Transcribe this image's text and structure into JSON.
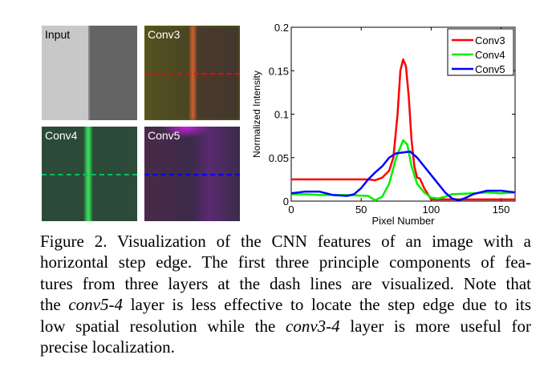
{
  "panels": [
    {
      "id": "input",
      "label": "Input"
    },
    {
      "id": "conv3",
      "label": "Conv3",
      "dash_color": "#ff0000"
    },
    {
      "id": "conv4",
      "label": "Conv4",
      "dash_color": "#00c060"
    },
    {
      "id": "conv5",
      "label": "Conv5",
      "dash_color": "#0000ff"
    }
  ],
  "chart_data": {
    "type": "line",
    "xlabel": "Pixel Number",
    "ylabel": "Normalized Intensity",
    "xlim": [
      0,
      160
    ],
    "ylim": [
      0,
      0.2
    ],
    "xticks": [
      "0",
      "50",
      "100",
      "150"
    ],
    "yticks": [
      "0",
      "0.05",
      "0.1",
      "0.15",
      "0.2"
    ],
    "xtick_values": [
      0,
      50,
      100,
      150
    ],
    "ytick_values": [
      0,
      0.05,
      0.1,
      0.15,
      0.2
    ],
    "legend_position": "top-right",
    "grid": false,
    "series": [
      {
        "name": "Conv3",
        "color": "#ff0000",
        "x": [
          0,
          55,
          60,
          65,
          70,
          73,
          76,
          78,
          80,
          82,
          84,
          86,
          88,
          90,
          92,
          95,
          100,
          160
        ],
        "y": [
          0.025,
          0.025,
          0.024,
          0.027,
          0.035,
          0.05,
          0.1,
          0.15,
          0.163,
          0.155,
          0.12,
          0.07,
          0.04,
          0.027,
          0.026,
          0.015,
          0.002,
          0.002
        ]
      },
      {
        "name": "Conv4",
        "color": "#00ee00",
        "x": [
          0,
          10,
          20,
          40,
          55,
          60,
          65,
          70,
          75,
          80,
          83,
          86,
          90,
          95,
          100,
          105,
          110,
          115,
          130,
          140,
          150,
          160
        ],
        "y": [
          0.008,
          0.008,
          0.007,
          0.007,
          0.006,
          0.001,
          0.005,
          0.02,
          0.05,
          0.07,
          0.065,
          0.04,
          0.02,
          0.01,
          0.004,
          0.003,
          0.005,
          0.008,
          0.009,
          0.01,
          0.009,
          0.01
        ]
      },
      {
        "name": "Conv5",
        "color": "#0000ff",
        "x": [
          0,
          10,
          20,
          30,
          40,
          45,
          50,
          55,
          60,
          65,
          70,
          75,
          80,
          85,
          90,
          95,
          100,
          105,
          110,
          115,
          120,
          125,
          130,
          140,
          150,
          160
        ],
        "y": [
          0.009,
          0.011,
          0.011,
          0.007,
          0.006,
          0.008,
          0.015,
          0.025,
          0.033,
          0.04,
          0.05,
          0.055,
          0.056,
          0.057,
          0.05,
          0.04,
          0.03,
          0.02,
          0.01,
          0.003,
          0.001,
          0.004,
          0.008,
          0.012,
          0.012,
          0.01
        ]
      }
    ]
  },
  "caption": {
    "lines": [
      [
        {
          "t": "Figure 2. Visualization of the CNN features of an image with a"
        }
      ],
      [
        {
          "t": "horizontal step edge. The first three principle components of fea-"
        }
      ],
      [
        {
          "t": "tures from three layers at the dash lines are visualized. Note that"
        }
      ],
      [
        {
          "t": "the "
        },
        {
          "t": "conv5-4",
          "i": true
        },
        {
          "t": " layer is less effective to locate the step edge due to its"
        }
      ],
      [
        {
          "t": "low spatial resolution while the "
        },
        {
          "t": "conv3-4",
          "i": true
        },
        {
          "t": " layer is more useful for"
        }
      ],
      [
        {
          "t": "precise localization."
        }
      ]
    ]
  }
}
